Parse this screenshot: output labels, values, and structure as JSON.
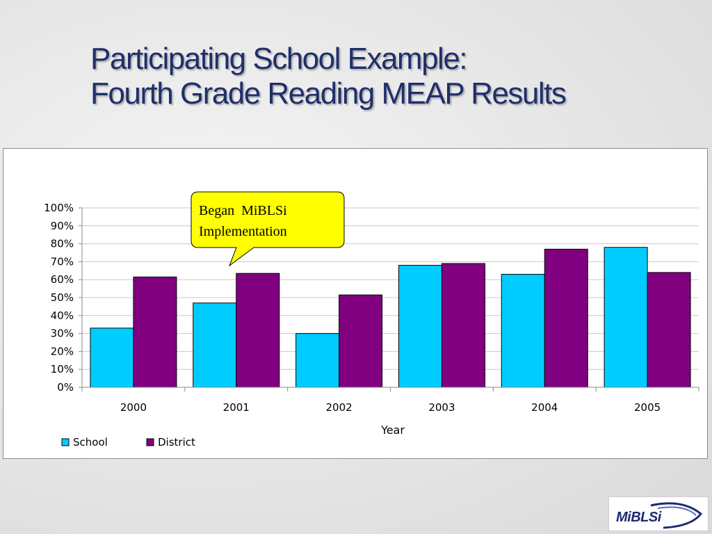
{
  "page": {
    "title_line1": "Participating School Example:",
    "title_line2": "Fourth Grade Reading MEAP Results"
  },
  "logo": {
    "text": "MiBLSi"
  },
  "callout": {
    "line1": "Began  MiBLSi",
    "line2": "Implementation"
  },
  "chart_data": {
    "type": "bar",
    "categories": [
      "2000",
      "2001",
      "2002",
      "2003",
      "2004",
      "2005"
    ],
    "series": [
      {
        "name": "School",
        "color": "#00ccff",
        "values": [
          33,
          47,
          30,
          68,
          63,
          78
        ]
      },
      {
        "name": "District",
        "color": "#800080",
        "values": [
          61.5,
          63.5,
          51.5,
          69,
          77,
          64
        ]
      }
    ],
    "xlabel": "Year",
    "ylabel": "",
    "ylim": [
      0,
      100
    ],
    "yticks": [
      "0%",
      "10%",
      "20%",
      "30%",
      "40%",
      "50%",
      "60%",
      "70%",
      "80%",
      "90%",
      "100%"
    ],
    "grid": true,
    "legend_position": "bottom-left"
  }
}
